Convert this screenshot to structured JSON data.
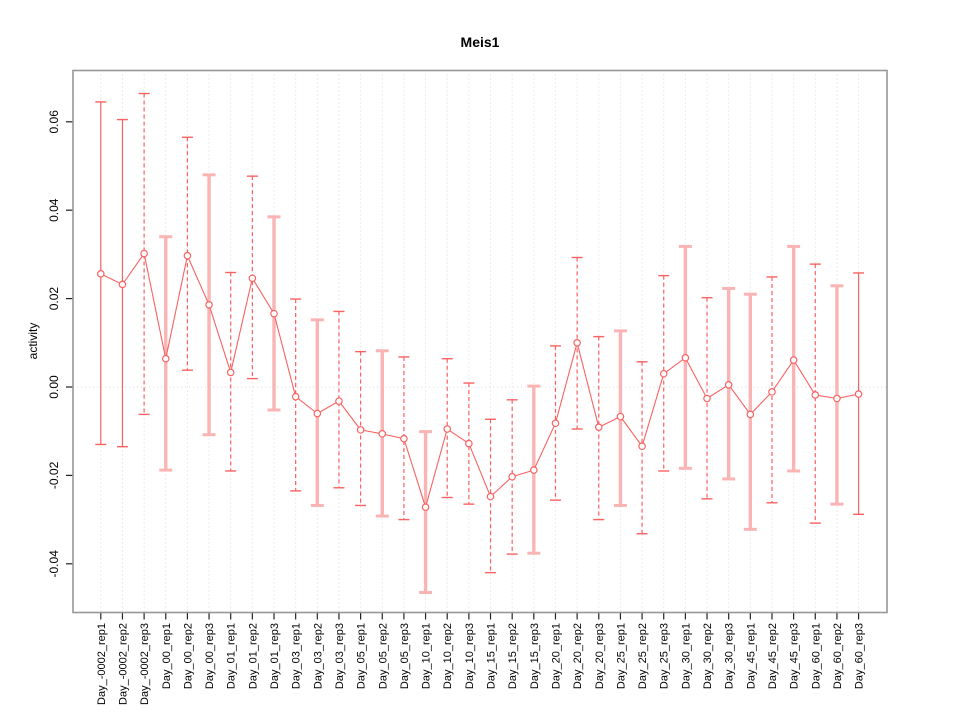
{
  "page": {
    "background": "#ffffff"
  },
  "chart_data": {
    "type": "line",
    "title": "Meis1",
    "xlabel": "",
    "ylabel": "activity",
    "ylim": [
      -0.048,
      0.068
    ],
    "yticks": [
      "0.06",
      "0.04",
      "0.02",
      "0.00",
      "-0.02",
      "-0.04"
    ],
    "ytick_values": [
      0.06,
      0.04,
      0.02,
      0.0,
      -0.02,
      -0.04
    ],
    "grid": {
      "vertical_dotted_per_category": true,
      "zero_line_dotted": true,
      "horizontal_gridlines": false
    },
    "legend_position": "none",
    "marker": "open-circle",
    "categories": [
      "Day_-0002_rep1",
      "Day_-0002_rep2",
      "Day_-0002_rep3",
      "Day_00_rep1",
      "Day_00_rep2",
      "Day_00_rep3",
      "Day_01_rep1",
      "Day_01_rep2",
      "Day_01_rep3",
      "Day_03_rep1",
      "Day_03_rep2",
      "Day_03_rep3",
      "Day_05_rep1",
      "Day_05_rep2",
      "Day_05_rep3",
      "Day_10_rep1",
      "Day_10_rep2",
      "Day_10_rep3",
      "Day_15_rep1",
      "Day_15_rep2",
      "Day_15_rep3",
      "Day_20_rep1",
      "Day_20_rep2",
      "Day_20_rep3",
      "Day_25_rep1",
      "Day_25_rep2",
      "Day_25_rep3",
      "Day_30_rep1",
      "Day_30_rep2",
      "Day_30_rep3",
      "Day_45_rep1",
      "Day_45_rep2",
      "Day_45_rep3",
      "Day_60_rep1",
      "Day_60_rep2",
      "Day_60_rep3"
    ],
    "series": [
      {
        "name": "Meis1 activity",
        "values": [
          0.0256,
          0.0232,
          0.0302,
          0.0064,
          0.0297,
          0.0186,
          0.0033,
          0.0246,
          0.0166,
          -0.0022,
          -0.006,
          -0.0032,
          -0.0097,
          -0.0106,
          -0.0117,
          -0.0272,
          -0.0095,
          -0.0128,
          -0.0248,
          -0.0203,
          -0.0188,
          -0.0082,
          0.01,
          -0.0091,
          -0.0067,
          -0.0134,
          0.003,
          0.0066,
          -0.0026,
          0.0005,
          -0.0062,
          -0.0011,
          0.0061,
          -0.0018,
          -0.0026,
          -0.0016
        ],
        "err_high": [
          0.0645,
          0.0605,
          0.0664,
          0.034,
          0.0565,
          0.048,
          0.0259,
          0.0477,
          0.0385,
          0.0199,
          0.0152,
          0.0171,
          0.008,
          0.0082,
          0.0068,
          -0.0101,
          0.0064,
          0.0009,
          -0.0073,
          -0.0029,
          0.0002,
          0.0093,
          0.0293,
          0.0114,
          0.0127,
          0.0057,
          0.0252,
          0.0318,
          0.0202,
          0.0223,
          0.021,
          0.0249,
          0.0318,
          0.0278,
          0.0229,
          0.0258
        ],
        "err_low": [
          -0.013,
          -0.0135,
          -0.0062,
          -0.0188,
          0.0038,
          -0.0108,
          -0.019,
          0.0019,
          -0.0052,
          -0.0235,
          -0.0268,
          -0.0228,
          -0.0268,
          -0.0292,
          -0.03,
          -0.0465,
          -0.025,
          -0.0265,
          -0.042,
          -0.0378,
          -0.0376,
          -0.0256,
          -0.0095,
          -0.03,
          -0.0268,
          -0.0332,
          -0.019,
          -0.0184,
          -0.0253,
          -0.0208,
          -0.0322,
          -0.0262,
          -0.019,
          -0.0308,
          -0.0265,
          -0.0288
        ],
        "err_style": [
          "solid",
          "solid",
          "dashed",
          "thick",
          "dashed",
          "thick",
          "dashed",
          "dashed",
          "thick",
          "dashed",
          "thick",
          "dashed",
          "dashed",
          "thick",
          "dashed",
          "thick",
          "dashed",
          "dashed",
          "dashed",
          "dashed",
          "thick",
          "dashed",
          "dashed",
          "dashed",
          "thick",
          "dashed",
          "dashed",
          "thick",
          "dashed",
          "thick",
          "thick",
          "dashed",
          "thick",
          "dashed",
          "thick",
          "solid"
        ]
      }
    ],
    "colors": {
      "red": "#f96262",
      "pink": "#fab4b4",
      "grid": "#d8d8d8",
      "frame": "#979797",
      "tick": "#222222",
      "text": "#000000"
    }
  }
}
